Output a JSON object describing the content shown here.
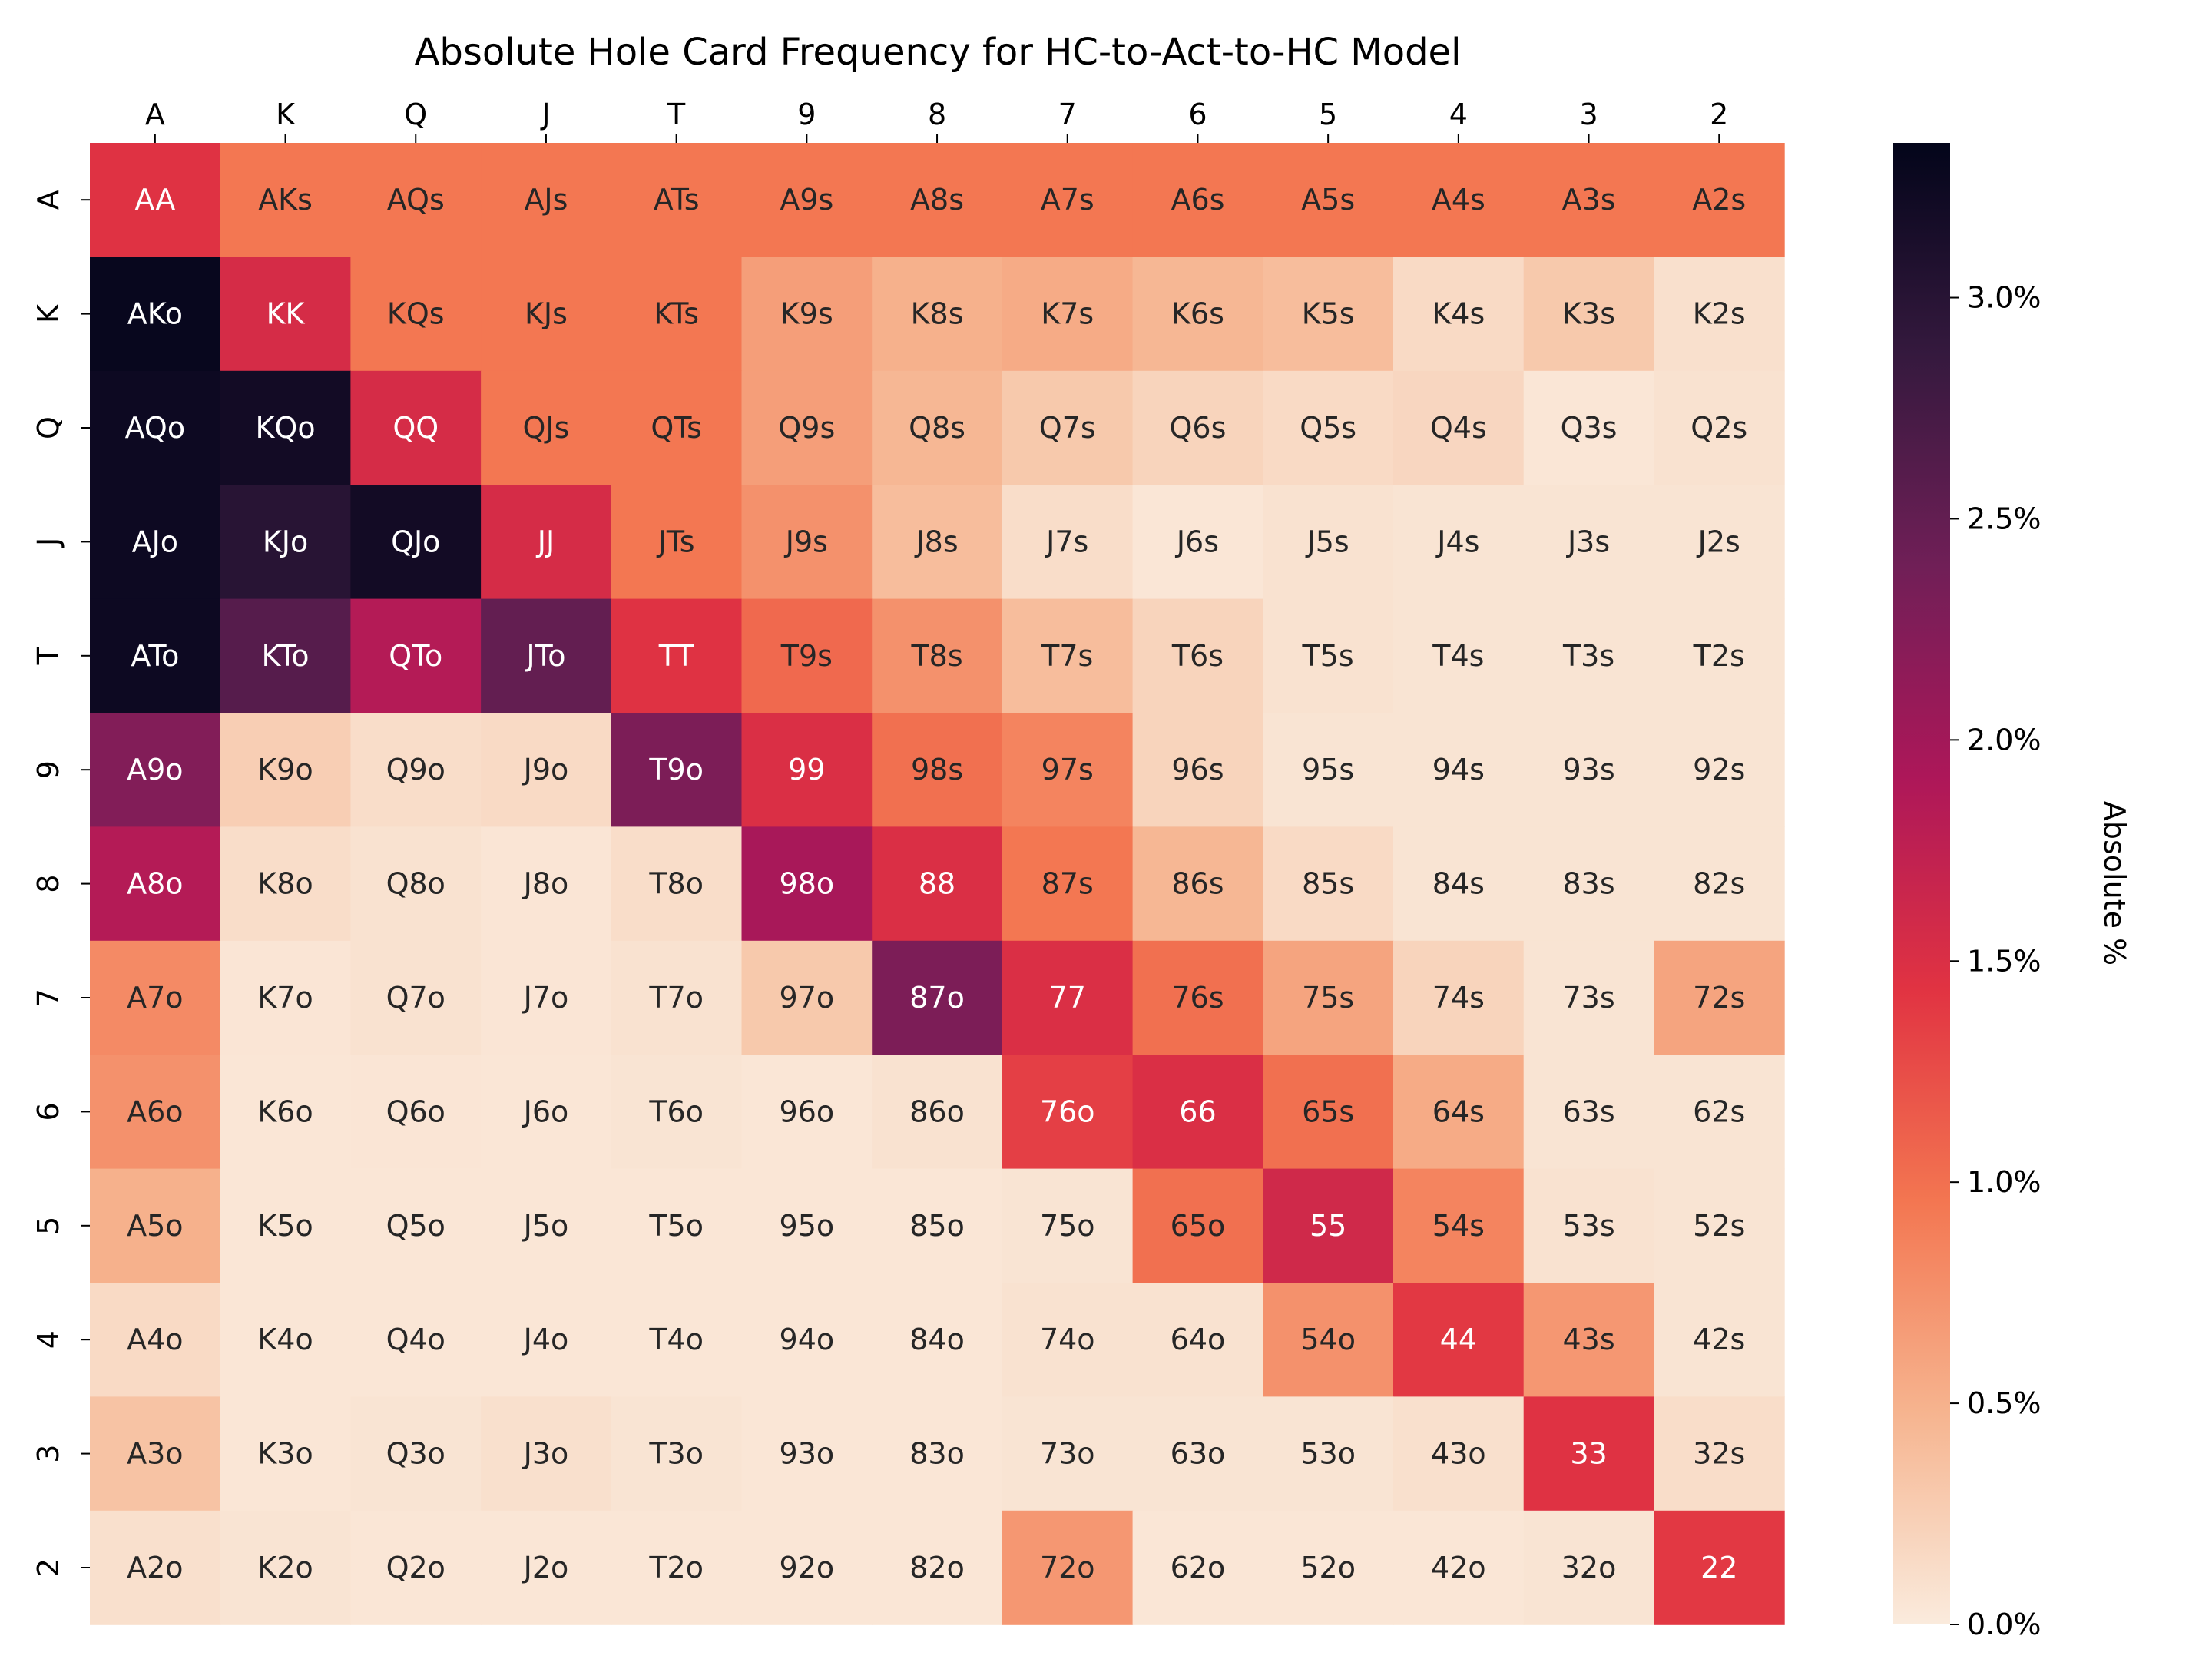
{
  "chart_data": {
    "type": "heatmap",
    "title": "Absolute Hole Card Frequency for HC-to-Act-to-HC Model",
    "x_tick_labels": [
      "A",
      "K",
      "Q",
      "J",
      "T",
      "9",
      "8",
      "7",
      "6",
      "5",
      "4",
      "3",
      "2"
    ],
    "y_tick_labels": [
      "A",
      "K",
      "Q",
      "J",
      "T",
      "9",
      "8",
      "7",
      "6",
      "5",
      "4",
      "3",
      "2"
    ],
    "cell_labels": [
      [
        "AA",
        "AKs",
        "AQs",
        "AJs",
        "ATs",
        "A9s",
        "A8s",
        "A7s",
        "A6s",
        "A5s",
        "A4s",
        "A3s",
        "A2s"
      ],
      [
        "AKo",
        "KK",
        "KQs",
        "KJs",
        "KTs",
        "K9s",
        "K8s",
        "K7s",
        "K6s",
        "K5s",
        "K4s",
        "K3s",
        "K2s"
      ],
      [
        "AQo",
        "KQo",
        "QQ",
        "QJs",
        "QTs",
        "Q9s",
        "Q8s",
        "Q7s",
        "Q6s",
        "Q5s",
        "Q4s",
        "Q3s",
        "Q2s"
      ],
      [
        "AJo",
        "KJo",
        "QJo",
        "JJ",
        "JTs",
        "J9s",
        "J8s",
        "J7s",
        "J6s",
        "J5s",
        "J4s",
        "J3s",
        "J2s"
      ],
      [
        "ATo",
        "KTo",
        "QTo",
        "JTo",
        "TT",
        "T9s",
        "T8s",
        "T7s",
        "T6s",
        "T5s",
        "T4s",
        "T3s",
        "T2s"
      ],
      [
        "A9o",
        "K9o",
        "Q9o",
        "J9o",
        "T9o",
        "99",
        "98s",
        "97s",
        "96s",
        "95s",
        "94s",
        "93s",
        "92s"
      ],
      [
        "A8o",
        "K8o",
        "Q8o",
        "J8o",
        "T8o",
        "98o",
        "88",
        "87s",
        "86s",
        "85s",
        "84s",
        "83s",
        "82s"
      ],
      [
        "A7o",
        "K7o",
        "Q7o",
        "J7o",
        "T7o",
        "97o",
        "87o",
        "77",
        "76s",
        "75s",
        "74s",
        "73s",
        "72s"
      ],
      [
        "A6o",
        "K6o",
        "Q6o",
        "J6o",
        "T6o",
        "96o",
        "86o",
        "76o",
        "66",
        "65s",
        "64s",
        "63s",
        "62s"
      ],
      [
        "A5o",
        "K5o",
        "Q5o",
        "J5o",
        "T5o",
        "95o",
        "85o",
        "75o",
        "65o",
        "55",
        "54s",
        "53s",
        "52s"
      ],
      [
        "A4o",
        "K4o",
        "Q4o",
        "J4o",
        "T4o",
        "94o",
        "84o",
        "74o",
        "64o",
        "54o",
        "44",
        "43s",
        "42s"
      ],
      [
        "A3o",
        "K3o",
        "Q3o",
        "J3o",
        "T3o",
        "93o",
        "83o",
        "73o",
        "63o",
        "53o",
        "43o",
        "33",
        "32s"
      ],
      [
        "A2o",
        "K2o",
        "Q2o",
        "J2o",
        "T2o",
        "92o",
        "82o",
        "72o",
        "62o",
        "52o",
        "42o",
        "32o",
        "22"
      ]
    ],
    "values": [
      [
        1.45,
        0.95,
        0.95,
        0.95,
        0.95,
        0.95,
        0.95,
        0.95,
        0.95,
        0.95,
        0.95,
        0.95,
        0.95
      ],
      [
        3.3,
        1.55,
        0.95,
        0.95,
        0.95,
        0.65,
        0.5,
        0.55,
        0.45,
        0.4,
        0.15,
        0.3,
        0.1
      ],
      [
        3.25,
        3.2,
        1.55,
        0.95,
        0.95,
        0.65,
        0.45,
        0.3,
        0.2,
        0.15,
        0.18,
        0.04,
        0.08
      ],
      [
        3.25,
        3.0,
        3.2,
        1.55,
        0.95,
        0.75,
        0.4,
        0.12,
        0.04,
        0.08,
        0.06,
        0.06,
        0.06
      ],
      [
        3.25,
        2.6,
        1.85,
        2.5,
        1.45,
        1.05,
        0.75,
        0.4,
        0.2,
        0.08,
        0.06,
        0.06,
        0.06
      ],
      [
        2.25,
        0.25,
        0.12,
        0.15,
        2.3,
        1.5,
        1.0,
        0.85,
        0.2,
        0.06,
        0.06,
        0.06,
        0.06
      ],
      [
        1.85,
        0.12,
        0.08,
        0.05,
        0.12,
        1.95,
        1.5,
        0.95,
        0.45,
        0.15,
        0.06,
        0.06,
        0.06
      ],
      [
        0.8,
        0.05,
        0.08,
        0.05,
        0.08,
        0.3,
        2.3,
        1.5,
        1.0,
        0.6,
        0.2,
        0.06,
        0.6
      ],
      [
        0.75,
        0.04,
        0.05,
        0.04,
        0.06,
        0.04,
        0.08,
        1.35,
        1.5,
        1.0,
        0.55,
        0.06,
        0.06
      ],
      [
        0.5,
        0.04,
        0.04,
        0.04,
        0.04,
        0.04,
        0.04,
        0.06,
        1.0,
        1.6,
        0.85,
        0.08,
        0.06
      ],
      [
        0.15,
        0.04,
        0.04,
        0.04,
        0.04,
        0.04,
        0.04,
        0.08,
        0.08,
        0.75,
        1.4,
        0.7,
        0.06
      ],
      [
        0.35,
        0.04,
        0.06,
        0.1,
        0.06,
        0.04,
        0.04,
        0.06,
        0.06,
        0.06,
        0.1,
        1.45,
        0.12
      ],
      [
        0.1,
        0.06,
        0.04,
        0.04,
        0.04,
        0.04,
        0.04,
        0.7,
        0.04,
        0.04,
        0.04,
        0.06,
        1.4
      ]
    ],
    "value_range": [
      0.0,
      3.35
    ],
    "colorbar": {
      "label": "Absolute %",
      "tick_values": [
        0.0,
        0.5,
        1.0,
        1.5,
        2.0,
        2.5,
        3.0
      ],
      "tick_labels": [
        "0.0%",
        "0.5%",
        "1.0%",
        "1.5%",
        "2.0%",
        "2.5%",
        "3.0%"
      ]
    },
    "colormap": [
      "#faebdd",
      "#f6b48f",
      "#f37651",
      "#e13342",
      "#ad1759",
      "#701f57",
      "#35193e",
      "#03051a"
    ]
  }
}
